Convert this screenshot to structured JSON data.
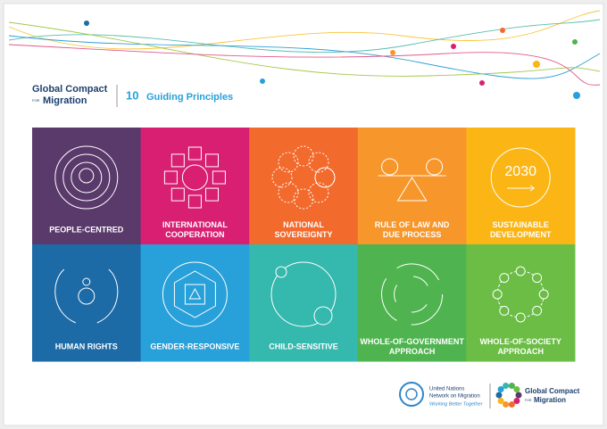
{
  "header": {
    "logo_line1": "Global Compact",
    "logo_for": "FOR",
    "logo_line2": "Migration",
    "number": "10",
    "title": "Guiding Principles"
  },
  "tiles": [
    {
      "label_lines": [
        "PEOPLE-CENTRED"
      ],
      "color": "#5a3a6b"
    },
    {
      "label_lines": [
        "INTERNATIONAL",
        "COOPERATION"
      ],
      "color": "#d81f72"
    },
    {
      "label_lines": [
        "NATIONAL",
        "SOVEREIGNTY"
      ],
      "color": "#f26a2c"
    },
    {
      "label_lines": [
        "RULE OF LAW AND",
        "DUE PROCESS"
      ],
      "color": "#f7962a"
    },
    {
      "label_lines": [
        "SUSTAINABLE",
        "DEVELOPMENT"
      ],
      "color": "#fbb515",
      "icon_text": "2030"
    },
    {
      "label_lines": [
        "HUMAN RIGHTS"
      ],
      "color": "#1c6aa6"
    },
    {
      "label_lines": [
        "GENDER-RESPONSIVE"
      ],
      "color": "#28a0d9"
    },
    {
      "label_lines": [
        "CHILD-SENSITIVE"
      ],
      "color": "#35b8ad"
    },
    {
      "label_lines": [
        "WHOLE-OF-GOVERNMENT",
        "APPROACH"
      ],
      "color": "#4fb44f"
    },
    {
      "label_lines": [
        "WHOLE-OF-SOCIETY",
        "APPROACH"
      ],
      "color": "#6bbd45"
    }
  ],
  "footer": {
    "un_line1": "United Nations",
    "un_line2": "Network on Migration",
    "un_tagline": "Working Better Together",
    "gcm_line1": "Global Compact",
    "gcm_for": "FOR",
    "gcm_line2": "Migration"
  }
}
